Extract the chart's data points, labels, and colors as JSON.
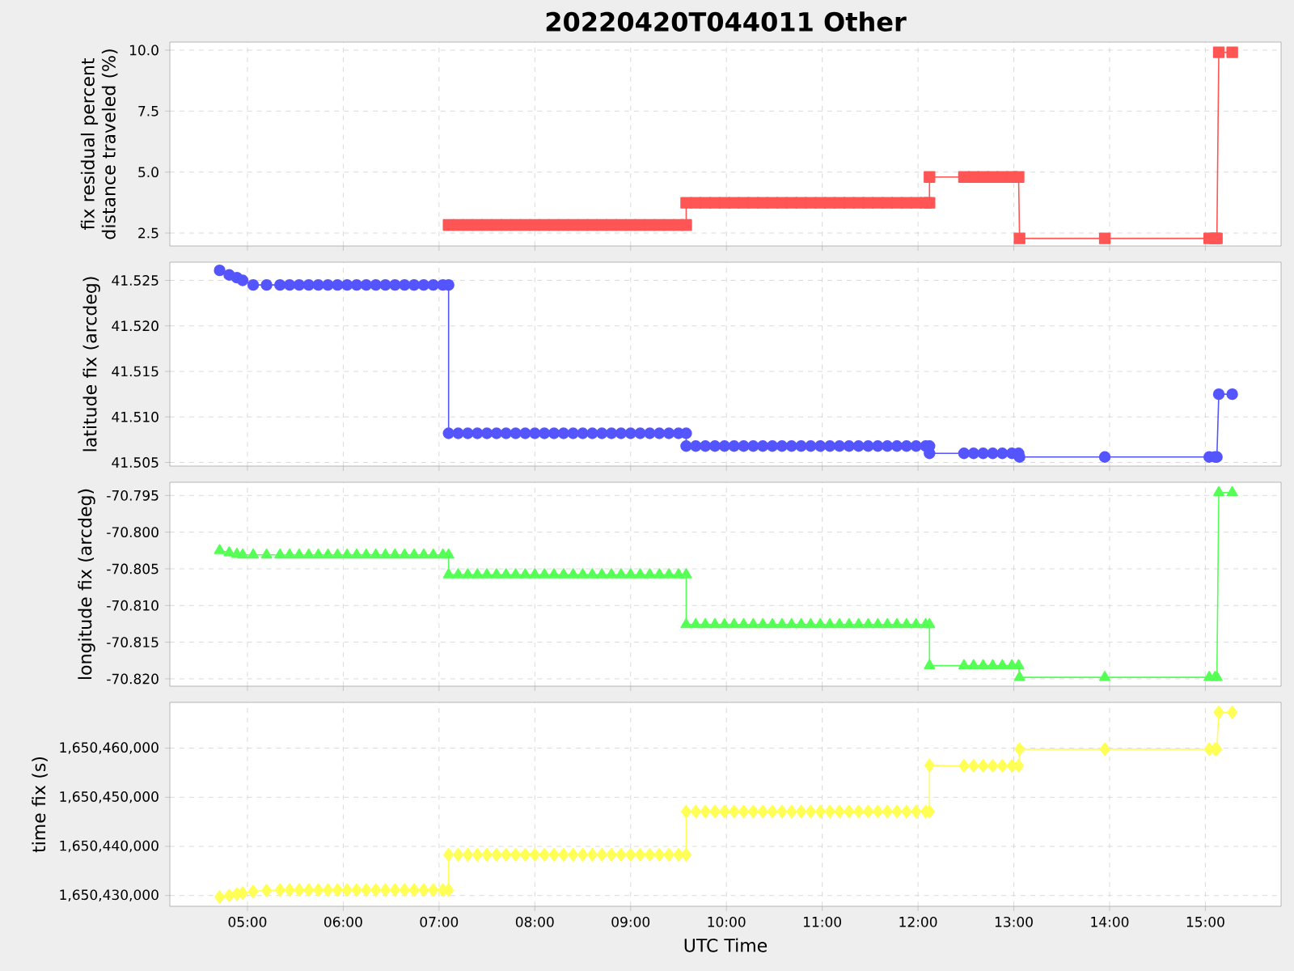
{
  "chart_data": [
    {
      "type": "line",
      "title": "20220420T044011 Other",
      "ylabel": "fix residual percent distance traveled (%)",
      "marker": "square",
      "grid": true,
      "tick_labels": "y",
      "xlim": [
        4.19,
        15.79
      ],
      "ylim": [
        1.97,
        10.33
      ],
      "xticks": [
        {
          "value": 5,
          "label": null
        },
        {
          "value": 6,
          "label": null
        },
        {
          "value": 7,
          "label": null
        },
        {
          "value": 8,
          "label": null
        },
        {
          "value": 9,
          "label": null
        },
        {
          "value": 10,
          "label": null
        },
        {
          "value": 11,
          "label": null
        },
        {
          "value": 12,
          "label": null
        },
        {
          "value": 13,
          "label": null
        },
        {
          "value": 14,
          "label": null
        },
        {
          "value": 15,
          "label": null
        }
      ],
      "yticks": [
        {
          "value": 2.5,
          "label": "2.5"
        },
        {
          "value": 5,
          "label": "5.0"
        },
        {
          "value": 7.5,
          "label": "7.5"
        },
        {
          "value": 10,
          "label": "10.0"
        }
      ],
      "series": [
        {
          "color": "#ff5555",
          "x": [
            7.1,
            7.2,
            7.3,
            7.4,
            7.5,
            7.6,
            7.7,
            7.8,
            7.9,
            8.0,
            8.1,
            8.2,
            8.3,
            8.4,
            8.5,
            8.6,
            8.7,
            8.8,
            8.9,
            9.0,
            9.1,
            9.2,
            9.3,
            9.4,
            9.5,
            9.58,
            9.58,
            9.68,
            9.78,
            9.88,
            9.98,
            10.08,
            10.18,
            10.28,
            10.38,
            10.48,
            10.58,
            10.68,
            10.78,
            10.88,
            10.98,
            11.08,
            11.18,
            11.28,
            11.38,
            11.48,
            11.58,
            11.68,
            11.78,
            11.88,
            11.98,
            12.08,
            12.12,
            12.12,
            12.48,
            12.58,
            12.68,
            12.78,
            12.88,
            12.98,
            13.05,
            13.06,
            13.95,
            15.04,
            15.1,
            15.12,
            15.14,
            15.28
          ],
          "values": [
            2.83,
            2.83,
            2.83,
            2.83,
            2.83,
            2.83,
            2.83,
            2.83,
            2.83,
            2.83,
            2.83,
            2.83,
            2.83,
            2.83,
            2.83,
            2.83,
            2.83,
            2.83,
            2.83,
            2.83,
            2.83,
            2.83,
            2.83,
            2.83,
            2.83,
            2.83,
            3.74,
            3.74,
            3.74,
            3.74,
            3.74,
            3.74,
            3.74,
            3.74,
            3.74,
            3.74,
            3.74,
            3.74,
            3.74,
            3.74,
            3.74,
            3.74,
            3.74,
            3.74,
            3.74,
            3.74,
            3.74,
            3.74,
            3.74,
            3.74,
            3.74,
            3.74,
            3.74,
            4.8,
            4.8,
            4.8,
            4.8,
            4.8,
            4.8,
            4.8,
            4.8,
            2.28,
            2.28,
            2.28,
            2.28,
            2.28,
            9.91,
            9.91
          ]
        }
      ]
    },
    {
      "type": "line",
      "ylabel": "latitude fix (arcdeg)",
      "marker": "circle",
      "grid": true,
      "tick_labels": "y",
      "xlim": [
        4.19,
        15.79
      ],
      "ylim": [
        41.5046,
        41.527
      ],
      "xticks": [
        {
          "value": 5,
          "label": null
        },
        {
          "value": 6,
          "label": null
        },
        {
          "value": 7,
          "label": null
        },
        {
          "value": 8,
          "label": null
        },
        {
          "value": 9,
          "label": null
        },
        {
          "value": 10,
          "label": null
        },
        {
          "value": 11,
          "label": null
        },
        {
          "value": 12,
          "label": null
        },
        {
          "value": 13,
          "label": null
        },
        {
          "value": 14,
          "label": null
        },
        {
          "value": 15,
          "label": null
        }
      ],
      "yticks": [
        {
          "value": 41.505,
          "label": "41.505"
        },
        {
          "value": 41.51,
          "label": "41.510"
        },
        {
          "value": 41.515,
          "label": "41.515"
        },
        {
          "value": 41.52,
          "label": "41.520"
        },
        {
          "value": 41.525,
          "label": "41.525"
        }
      ],
      "series": [
        {
          "color": "#5555ff",
          "x": [
            4.71,
            4.81,
            4.89,
            4.95,
            5.06,
            5.2,
            5.34,
            5.44,
            5.54,
            5.64,
            5.74,
            5.84,
            5.94,
            6.04,
            6.14,
            6.24,
            6.34,
            6.44,
            6.54,
            6.64,
            6.74,
            6.84,
            6.94,
            7.04,
            7.1,
            7.1,
            7.2,
            7.3,
            7.4,
            7.5,
            7.6,
            7.7,
            7.8,
            7.9,
            8.0,
            8.1,
            8.2,
            8.3,
            8.4,
            8.5,
            8.6,
            8.7,
            8.8,
            8.9,
            9.0,
            9.1,
            9.2,
            9.3,
            9.4,
            9.5,
            9.58,
            9.58,
            9.68,
            9.78,
            9.88,
            9.98,
            10.08,
            10.18,
            10.28,
            10.38,
            10.48,
            10.58,
            10.68,
            10.78,
            10.88,
            10.98,
            11.08,
            11.18,
            11.28,
            11.38,
            11.48,
            11.58,
            11.68,
            11.78,
            11.88,
            11.98,
            12.08,
            12.12,
            12.12,
            12.48,
            12.58,
            12.68,
            12.78,
            12.88,
            12.98,
            13.05,
            13.06,
            13.95,
            15.04,
            15.1,
            15.12,
            15.14,
            15.28
          ],
          "values": [
            41.5261,
            41.5256,
            41.5253,
            41.525,
            41.5245,
            41.5245,
            41.5245,
            41.5245,
            41.5245,
            41.5245,
            41.5245,
            41.5245,
            41.5245,
            41.5245,
            41.5245,
            41.5245,
            41.5245,
            41.5245,
            41.5245,
            41.5245,
            41.5245,
            41.5245,
            41.5245,
            41.5245,
            41.5245,
            41.5082,
            41.5082,
            41.5082,
            41.5082,
            41.5082,
            41.5082,
            41.5082,
            41.5082,
            41.5082,
            41.5082,
            41.5082,
            41.5082,
            41.5082,
            41.5082,
            41.5082,
            41.5082,
            41.5082,
            41.5082,
            41.5082,
            41.5082,
            41.5082,
            41.5082,
            41.5082,
            41.5082,
            41.5082,
            41.5082,
            41.5068,
            41.5068,
            41.5068,
            41.5068,
            41.5068,
            41.5068,
            41.5068,
            41.5068,
            41.5068,
            41.5068,
            41.5068,
            41.5068,
            41.5068,
            41.5068,
            41.5068,
            41.5068,
            41.5068,
            41.5068,
            41.5068,
            41.5068,
            41.5068,
            41.5068,
            41.5068,
            41.5068,
            41.5068,
            41.5068,
            41.5068,
            41.506,
            41.506,
            41.506,
            41.506,
            41.506,
            41.506,
            41.506,
            41.506,
            41.5056,
            41.5056,
            41.5056,
            41.5056,
            41.5056,
            41.5125,
            41.5125
          ]
        }
      ]
    },
    {
      "type": "line",
      "ylabel": "longitude fix (arcdeg)",
      "marker": "triangle",
      "grid": true,
      "tick_labels": "y",
      "xlim": [
        4.19,
        15.79
      ],
      "ylim": [
        -70.821,
        -70.7932
      ],
      "xticks": [
        {
          "value": 5,
          "label": null
        },
        {
          "value": 6,
          "label": null
        },
        {
          "value": 7,
          "label": null
        },
        {
          "value": 8,
          "label": null
        },
        {
          "value": 9,
          "label": null
        },
        {
          "value": 10,
          "label": null
        },
        {
          "value": 11,
          "label": null
        },
        {
          "value": 12,
          "label": null
        },
        {
          "value": 13,
          "label": null
        },
        {
          "value": 14,
          "label": null
        },
        {
          "value": 15,
          "label": null
        }
      ],
      "yticks": [
        {
          "value": -70.82,
          "label": "-70.820"
        },
        {
          "value": -70.815,
          "label": "-70.815"
        },
        {
          "value": -70.81,
          "label": "-70.810"
        },
        {
          "value": -70.805,
          "label": "-70.805"
        },
        {
          "value": -70.8,
          "label": "-70.800"
        },
        {
          "value": -70.795,
          "label": "-70.795"
        }
      ],
      "series": [
        {
          "color": "#55ff55",
          "x": [
            4.71,
            4.81,
            4.89,
            4.95,
            5.06,
            5.2,
            5.34,
            5.44,
            5.54,
            5.64,
            5.74,
            5.84,
            5.94,
            6.04,
            6.14,
            6.24,
            6.34,
            6.44,
            6.54,
            6.64,
            6.74,
            6.84,
            6.94,
            7.04,
            7.1,
            7.1,
            7.2,
            7.3,
            7.4,
            7.5,
            7.6,
            7.7,
            7.8,
            7.9,
            8.0,
            8.1,
            8.2,
            8.3,
            8.4,
            8.5,
            8.6,
            8.7,
            8.8,
            8.9,
            9.0,
            9.1,
            9.2,
            9.3,
            9.4,
            9.5,
            9.58,
            9.58,
            9.68,
            9.78,
            9.88,
            9.98,
            10.08,
            10.18,
            10.28,
            10.38,
            10.48,
            10.58,
            10.68,
            10.78,
            10.88,
            10.98,
            11.08,
            11.18,
            11.28,
            11.38,
            11.48,
            11.58,
            11.68,
            11.78,
            11.88,
            11.98,
            12.08,
            12.12,
            12.12,
            12.48,
            12.58,
            12.68,
            12.78,
            12.88,
            12.98,
            13.05,
            13.06,
            13.95,
            15.04,
            15.1,
            15.12,
            15.14,
            15.28
          ],
          "values": [
            -70.8025,
            -70.8028,
            -70.803,
            -70.8031,
            -70.8031,
            -70.8031,
            -70.8031,
            -70.8031,
            -70.8031,
            -70.8031,
            -70.8031,
            -70.8031,
            -70.8031,
            -70.8031,
            -70.8031,
            -70.8031,
            -70.8031,
            -70.8031,
            -70.8031,
            -70.8031,
            -70.8031,
            -70.8031,
            -70.8031,
            -70.8031,
            -70.8031,
            -70.8058,
            -70.8058,
            -70.8058,
            -70.8058,
            -70.8058,
            -70.8058,
            -70.8058,
            -70.8058,
            -70.8058,
            -70.8058,
            -70.8058,
            -70.8058,
            -70.8058,
            -70.8058,
            -70.8058,
            -70.8058,
            -70.8058,
            -70.8058,
            -70.8058,
            -70.8058,
            -70.8058,
            -70.8058,
            -70.8058,
            -70.8058,
            -70.8058,
            -70.8058,
            -70.8126,
            -70.8126,
            -70.8126,
            -70.8126,
            -70.8126,
            -70.8126,
            -70.8126,
            -70.8126,
            -70.8126,
            -70.8126,
            -70.8126,
            -70.8126,
            -70.8126,
            -70.8126,
            -70.8126,
            -70.8126,
            -70.8126,
            -70.8126,
            -70.8126,
            -70.8126,
            -70.8126,
            -70.8126,
            -70.8126,
            -70.8126,
            -70.8126,
            -70.8126,
            -70.8126,
            -70.8182,
            -70.8182,
            -70.8182,
            -70.8182,
            -70.8182,
            -70.8182,
            -70.8182,
            -70.8182,
            -70.8198,
            -70.8198,
            -70.8198,
            -70.8198,
            -70.8198,
            -70.7946,
            -70.7946
          ]
        }
      ]
    },
    {
      "type": "line",
      "xlabel": "UTC Time",
      "ylabel": "time fix (s)",
      "marker": "diamond",
      "grid": true,
      "xlim": [
        4.19,
        15.79
      ],
      "ylim": [
        1650427790,
        1650469330
      ],
      "xticks": [
        {
          "value": 5,
          "label": "05:00"
        },
        {
          "value": 6,
          "label": "06:00"
        },
        {
          "value": 7,
          "label": "07:00"
        },
        {
          "value": 8,
          "label": "08:00"
        },
        {
          "value": 9,
          "label": "09:00"
        },
        {
          "value": 10,
          "label": "10:00"
        },
        {
          "value": 11,
          "label": "11:00"
        },
        {
          "value": 12,
          "label": "12:00"
        },
        {
          "value": 13,
          "label": "13:00"
        },
        {
          "value": 14,
          "label": "14:00"
        },
        {
          "value": 15,
          "label": "15:00"
        }
      ],
      "yticks": [
        {
          "value": 1650430000,
          "label": "1,650,430,000"
        },
        {
          "value": 1650440000,
          "label": "1,650,440,000"
        },
        {
          "value": 1650450000,
          "label": "1,650,450,000"
        },
        {
          "value": 1650460000,
          "label": "1,650,460,000"
        }
      ],
      "series": [
        {
          "color": "#ffff55",
          "x": [
            4.71,
            4.81,
            4.89,
            4.95,
            5.06,
            5.2,
            5.34,
            5.44,
            5.54,
            5.64,
            5.74,
            5.84,
            5.94,
            6.04,
            6.14,
            6.24,
            6.34,
            6.44,
            6.54,
            6.64,
            6.74,
            6.84,
            6.94,
            7.04,
            7.1,
            7.1,
            7.2,
            7.3,
            7.4,
            7.5,
            7.6,
            7.7,
            7.8,
            7.9,
            8.0,
            8.1,
            8.2,
            8.3,
            8.4,
            8.5,
            8.6,
            8.7,
            8.8,
            8.9,
            9.0,
            9.1,
            9.2,
            9.3,
            9.4,
            9.5,
            9.58,
            9.58,
            9.68,
            9.78,
            9.88,
            9.98,
            10.08,
            10.18,
            10.28,
            10.38,
            10.48,
            10.58,
            10.68,
            10.78,
            10.88,
            10.98,
            11.08,
            11.18,
            11.28,
            11.38,
            11.48,
            11.58,
            11.68,
            11.78,
            11.88,
            11.98,
            12.08,
            12.12,
            12.12,
            12.48,
            12.58,
            12.68,
            12.78,
            12.88,
            12.98,
            13.05,
            13.06,
            13.95,
            15.04,
            15.1,
            15.12,
            15.14,
            15.28
          ],
          "values": [
            1650429700,
            1650430000,
            1650430300,
            1650430500,
            1650430800,
            1650431000,
            1650431100,
            1650431100,
            1650431100,
            1650431100,
            1650431100,
            1650431100,
            1650431100,
            1650431100,
            1650431100,
            1650431100,
            1650431100,
            1650431100,
            1650431100,
            1650431100,
            1650431100,
            1650431100,
            1650431100,
            1650431100,
            1650431100,
            1650438300,
            1650438300,
            1650438300,
            1650438300,
            1650438300,
            1650438300,
            1650438300,
            1650438300,
            1650438300,
            1650438300,
            1650438300,
            1650438300,
            1650438300,
            1650438300,
            1650438300,
            1650438300,
            1650438300,
            1650438300,
            1650438300,
            1650438300,
            1650438300,
            1650438300,
            1650438300,
            1650438300,
            1650438300,
            1650438300,
            1650447100,
            1650447100,
            1650447100,
            1650447100,
            1650447100,
            1650447100,
            1650447100,
            1650447100,
            1650447100,
            1650447100,
            1650447100,
            1650447100,
            1650447100,
            1650447100,
            1650447100,
            1650447100,
            1650447100,
            1650447100,
            1650447100,
            1650447100,
            1650447100,
            1650447100,
            1650447100,
            1650447100,
            1650447100,
            1650447100,
            1650447100,
            1650456500,
            1650456400,
            1650456400,
            1650456400,
            1650456400,
            1650456400,
            1650456400,
            1650456400,
            1650459800,
            1650459800,
            1650459800,
            1650459800,
            1650459800,
            1650467300,
            1650467300
          ]
        }
      ]
    }
  ]
}
